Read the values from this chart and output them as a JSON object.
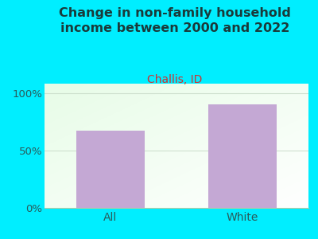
{
  "title": "Change in non-family household\nincome between 2000 and 2022",
  "subtitle": "Challis, ID",
  "categories": [
    "All",
    "White"
  ],
  "values": [
    67,
    90
  ],
  "bar_color": "#c4a8d4",
  "title_color": "#1a3a3a",
  "subtitle_color": "#cc3333",
  "background_color": "#00eeff",
  "yticks": [
    0,
    50,
    100
  ],
  "ytick_labels": [
    "0%",
    "50%",
    "100%"
  ],
  "ymax": 108,
  "title_fontsize": 11.5,
  "subtitle_fontsize": 10,
  "tick_fontsize": 9.5,
  "xlabel_fontsize": 10,
  "bar_width": 0.52
}
